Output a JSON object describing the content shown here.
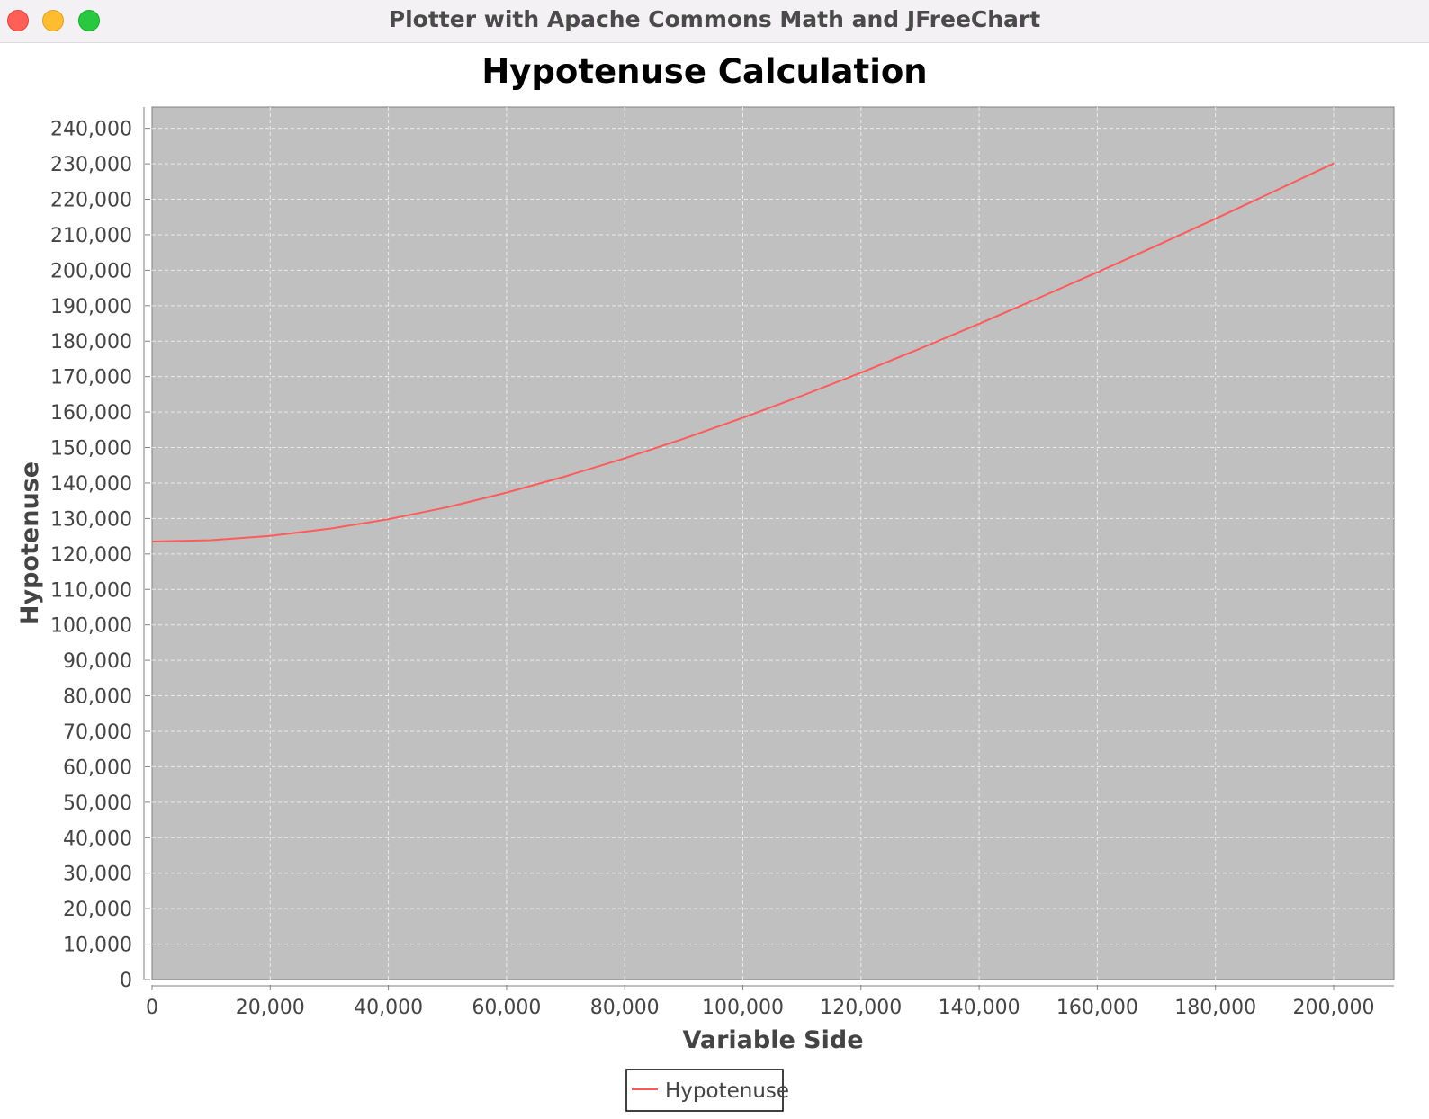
{
  "window": {
    "title": "Plotter with Apache Commons Math and JFreeChart"
  },
  "chart_data": {
    "type": "line",
    "title": "Hypotenuse Calculation",
    "xlabel": "Variable Side",
    "ylabel": "Hypotenuse",
    "xlim": [
      0,
      210000
    ],
    "ylim": [
      0,
      246000
    ],
    "x_ticks": [
      0,
      20000,
      40000,
      60000,
      80000,
      100000,
      120000,
      140000,
      160000,
      180000,
      200000
    ],
    "x_tick_labels": [
      "0",
      "20,000",
      "40,000",
      "60,000",
      "80,000",
      "100,000",
      "120,000",
      "140,000",
      "160,000",
      "180,000",
      "200,000"
    ],
    "y_ticks": [
      0,
      10000,
      20000,
      30000,
      40000,
      50000,
      60000,
      70000,
      80000,
      90000,
      100000,
      110000,
      120000,
      130000,
      140000,
      150000,
      160000,
      170000,
      180000,
      190000,
      200000,
      210000,
      220000,
      230000,
      240000
    ],
    "y_tick_labels": [
      "0",
      "10,000",
      "20,000",
      "30,000",
      "40,000",
      "50,000",
      "60,000",
      "70,000",
      "80,000",
      "90,000",
      "100,000",
      "110,000",
      "120,000",
      "130,000",
      "140,000",
      "150,000",
      "160,000",
      "170,000",
      "180,000",
      "190,000",
      "200,000",
      "210,000",
      "220,000",
      "230,000",
      "240,000"
    ],
    "grid": true,
    "legend_position": "bottom-center",
    "series": [
      {
        "name": "Hypotenuse",
        "color": "#ff5a5a",
        "x": [
          0,
          10000,
          20000,
          30000,
          40000,
          50000,
          60000,
          70000,
          80000,
          90000,
          100000,
          110000,
          120000,
          130000,
          140000,
          150000,
          160000,
          170000,
          180000,
          190000,
          200000
        ],
        "y": [
          123500,
          123900,
          125100,
          127100,
          129800,
          133200,
          137300,
          141900,
          147000,
          152500,
          158400,
          164600,
          171100,
          177900,
          184900,
          192100,
          199400,
          206900,
          214500,
          222300,
          230100
        ]
      }
    ],
    "colors": {
      "plot_background": "#c0c0c0",
      "gridline": "#ebebeb",
      "axis_line": "#808080",
      "tick_label": "#444444",
      "axis_label": "#444444",
      "title": "#000000"
    }
  }
}
